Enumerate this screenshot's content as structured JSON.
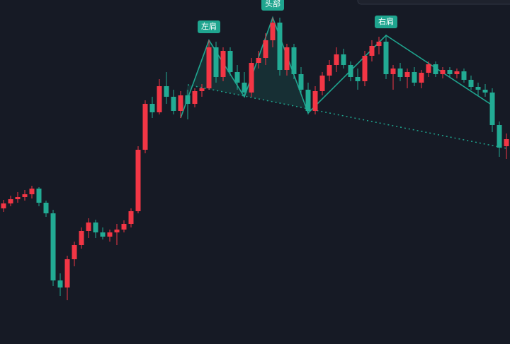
{
  "chart_data": {
    "type": "candlestick",
    "up_color": "#f23645",
    "down_color": "#22ab94",
    "pattern_color": "#1fa58f",
    "ylim": [
      0,
      487
    ],
    "open": [
      192,
      199,
      205,
      208,
      212,
      220,
      200,
      185,
      90,
      80,
      120,
      140,
      160,
      172,
      158,
      152,
      158,
      162,
      170,
      188,
      275,
      340,
      328,
      365,
      350,
      330,
      352,
      340,
      358,
      362,
      420,
      378,
      415,
      385,
      370,
      356,
      398,
      405,
      430,
      455,
      388,
      420,
      382,
      360,
      330,
      358,
      380,
      395,
      410,
      395,
      378,
      372,
      408,
      422,
      428,
      382,
      390,
      378,
      385,
      370,
      384,
      396,
      382,
      388,
      382,
      386,
      374,
      364,
      360,
      356,
      310,
      280
    ],
    "high": [
      204,
      210,
      215,
      218,
      224,
      222,
      203,
      190,
      100,
      125,
      145,
      165,
      178,
      176,
      165,
      162,
      170,
      175,
      192,
      280,
      345,
      350,
      375,
      385,
      360,
      358,
      360,
      362,
      368,
      430,
      428,
      420,
      420,
      395,
      385,
      405,
      415,
      440,
      462,
      462,
      425,
      425,
      392,
      370,
      365,
      385,
      402,
      420,
      418,
      400,
      390,
      415,
      430,
      435,
      438,
      395,
      398,
      390,
      392,
      388,
      400,
      400,
      392,
      392,
      390,
      390,
      380,
      370,
      368,
      362,
      315,
      298
    ],
    "low": [
      187,
      195,
      200,
      203,
      206,
      195,
      180,
      82,
      68,
      62,
      110,
      135,
      150,
      150,
      148,
      145,
      140,
      158,
      165,
      185,
      270,
      320,
      325,
      340,
      325,
      320,
      318,
      335,
      350,
      360,
      370,
      372,
      380,
      360,
      350,
      350,
      390,
      395,
      420,
      380,
      380,
      375,
      355,
      325,
      325,
      352,
      372,
      385,
      390,
      372,
      360,
      365,
      400,
      410,
      375,
      360,
      372,
      362,
      365,
      362,
      378,
      378,
      376,
      378,
      376,
      370,
      360,
      352,
      350,
      300,
      265,
      262
    ],
    "close": [
      199,
      205,
      208,
      212,
      220,
      200,
      185,
      90,
      80,
      120,
      140,
      160,
      172,
      158,
      152,
      158,
      162,
      170,
      188,
      275,
      340,
      328,
      365,
      350,
      330,
      352,
      340,
      358,
      362,
      420,
      378,
      415,
      385,
      370,
      356,
      398,
      405,
      430,
      455,
      388,
      420,
      382,
      360,
      330,
      358,
      380,
      395,
      410,
      395,
      378,
      372,
      408,
      422,
      428,
      382,
      390,
      378,
      385,
      370,
      384,
      396,
      382,
      388,
      382,
      386,
      374,
      364,
      360,
      356,
      310,
      278,
      290
    ],
    "pattern_points": {
      "index": [
        25,
        29,
        34,
        38,
        43,
        54,
        69
      ],
      "values": [
        320,
        430,
        350,
        462,
        327,
        437,
        338
      ],
      "labels": [
        null,
        "左肩",
        null,
        "头部",
        null,
        "右肩",
        null
      ]
    },
    "neckline": {
      "index": [
        26,
        71
      ],
      "values": [
        367,
        277
      ]
    }
  }
}
